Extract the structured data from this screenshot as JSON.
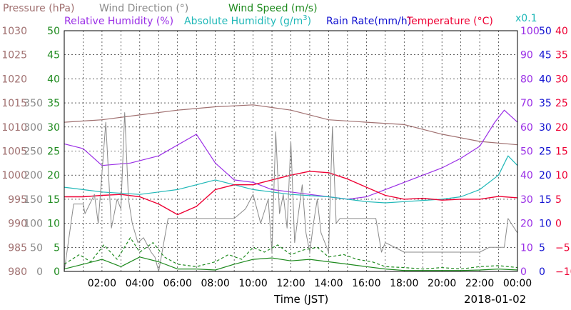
{
  "colors": {
    "pressure": "#a07070",
    "wind_dir": "#8a8a8a",
    "wind_speed": "#1e8a1e",
    "humidity_rel": "#9a2ee6",
    "humidity_abs": "#20b8b8",
    "rain": "#1010d0",
    "temperature": "#ee0033"
  },
  "legend": {
    "pressure": "Pressure (hPa)",
    "wind_dir": "Wind Direction (°)",
    "wind_speed": "Wind Speed (m/s)",
    "humidity_rel": "Relative Humidity (%)",
    "humidity_abs": "Absolute Humidity (g/m",
    "humidity_abs_sup": "3",
    "humidity_abs_close": ")",
    "rain": "Rain Rate(mm/h)",
    "temperature": "Temperature (°C)",
    "abs_scale": "x0.1"
  },
  "xlabel": "Time (JST)",
  "date": "2018-01-02",
  "chart_data": {
    "type": "line",
    "x_ticks": [
      "02:00",
      "04:00",
      "06:00",
      "08:00",
      "10:00",
      "12:00",
      "14:00",
      "16:00",
      "18:00",
      "20:00",
      "22:00",
      "00:00"
    ],
    "xlim_hours": [
      0,
      24
    ],
    "axes": {
      "pressure": {
        "ticks": [
          "1030",
          "1025",
          "1020",
          "1015",
          "1010",
          "1005",
          "1000",
          "995",
          "990",
          "985",
          "980"
        ],
        "range": [
          980,
          1030
        ]
      },
      "wind_dir": {
        "ticks": [
          "350",
          "300",
          "250",
          "200",
          "150",
          "100",
          "50",
          "0"
        ],
        "range": [
          0,
          350
        ]
      },
      "wind_speed": {
        "ticks": [
          "50",
          "45",
          "40",
          "35",
          "30",
          "25",
          "20",
          "15",
          "10",
          "5",
          "0"
        ],
        "range": [
          0,
          50
        ]
      },
      "humidity_rel": {
        "ticks": [
          "100",
          "90",
          "80",
          "70",
          "60",
          "50",
          "40",
          "30",
          "20",
          "10",
          "0"
        ],
        "range": [
          0,
          100
        ]
      },
      "rain": {
        "ticks": [
          "50",
          "45",
          "40",
          "35",
          "30",
          "25",
          "20",
          "15",
          "10",
          "5",
          "0"
        ],
        "range": [
          0,
          50
        ]
      },
      "temperature": {
        "ticks": [
          "40",
          "35",
          "30",
          "25",
          "20",
          "15",
          "10",
          "5",
          "0",
          "−5",
          "−10"
        ],
        "range": [
          -10,
          40
        ]
      }
    },
    "series": [
      {
        "key": "pressure",
        "axis": "pressure",
        "x": [
          0,
          2,
          4,
          6,
          8,
          10,
          12,
          14,
          16,
          18,
          20,
          22,
          24
        ],
        "y": [
          1011.0,
          1011.5,
          1012.5,
          1013.5,
          1014.2,
          1014.6,
          1013.5,
          1011.5,
          1011.0,
          1010.5,
          1008.5,
          1007.0,
          1006.3
        ]
      },
      {
        "key": "humidity_rel",
        "axis": "humidity_rel",
        "x": [
          0,
          1,
          2,
          3.5,
          5,
          7,
          8,
          9,
          10,
          11,
          12,
          13,
          14,
          15,
          16,
          17,
          18,
          19,
          20,
          21,
          22,
          22.8,
          23.3,
          24
        ],
        "y": [
          53,
          51,
          44,
          45,
          48,
          57,
          45,
          38,
          37,
          34,
          33,
          32,
          31,
          30,
          31,
          34,
          37,
          40,
          43,
          47,
          52,
          62,
          67,
          62
        ]
      },
      {
        "key": "humidity_abs",
        "axis": "humidity_rel",
        "x": [
          0,
          2,
          4,
          5,
          6,
          8,
          10,
          12,
          14,
          16,
          17,
          18,
          20,
          21,
          22,
          23,
          23.5,
          24
        ],
        "y": [
          35,
          33,
          32,
          33,
          34,
          38,
          34,
          32,
          31,
          29,
          28.5,
          29,
          30,
          31,
          34,
          40,
          48,
          44
        ]
      },
      {
        "key": "temperature",
        "axis": "temperature",
        "x": [
          0,
          1,
          2,
          3,
          4,
          5,
          6,
          7,
          8,
          9,
          10,
          11,
          12,
          13,
          14,
          15,
          16,
          17,
          18,
          19,
          20,
          21,
          22,
          23,
          24
        ],
        "y": [
          5.5,
          5.5,
          5.8,
          6.0,
          5.5,
          4.0,
          1.8,
          3.5,
          7.0,
          8.0,
          8.0,
          9.0,
          10.0,
          10.8,
          10.5,
          9.2,
          7.5,
          5.8,
          5.0,
          5.2,
          4.8,
          5.0,
          5.0,
          5.6,
          5.3
        ]
      },
      {
        "key": "wind_dir",
        "axis": "wind_dir",
        "x": [
          0,
          0.5,
          1,
          1.1,
          1.6,
          1.8,
          2.2,
          2.5,
          2.8,
          3.0,
          3.2,
          3.4,
          3.6,
          3.9,
          4.2,
          4.6,
          4.8,
          5.0,
          5.5,
          6,
          7,
          8,
          8.5,
          9,
          9.6,
          10,
          10.4,
          10.8,
          11,
          11.2,
          11.4,
          11.6,
          11.8,
          12,
          12.2,
          12.4,
          12.6,
          12.8,
          13.0,
          13.2,
          13.4,
          13.6,
          13.8,
          14.0,
          14.2,
          14.4,
          14.6,
          15,
          16,
          16.5,
          16.8,
          17,
          18,
          19,
          20,
          21,
          22,
          22.5,
          23,
          23.3,
          23.5,
          24
        ],
        "y": [
          0,
          140,
          140,
          120,
          160,
          100,
          310,
          90,
          150,
          130,
          330,
          150,
          100,
          60,
          70,
          40,
          30,
          0,
          110,
          110,
          110,
          110,
          110,
          110,
          130,
          160,
          100,
          150,
          40,
          290,
          120,
          160,
          90,
          270,
          60,
          120,
          180,
          80,
          40,
          100,
          150,
          80,
          60,
          40,
          300,
          100,
          110,
          110,
          110,
          110,
          40,
          60,
          40,
          40,
          40,
          40,
          40,
          50,
          50,
          50,
          110,
          80
        ]
      },
      {
        "key": "wind_speed_avg",
        "axis": "wind_speed",
        "x": [
          0,
          1,
          2,
          3,
          4,
          5,
          6,
          7,
          8,
          9,
          10,
          11,
          12,
          13,
          14,
          15,
          16,
          17,
          18,
          19,
          20,
          21,
          22,
          23,
          24
        ],
        "y": [
          0.5,
          1.5,
          2.5,
          1.0,
          3.0,
          2.0,
          0.5,
          0.5,
          0.3,
          1.5,
          2.5,
          2.8,
          2.2,
          2.5,
          2.0,
          1.5,
          1.0,
          0.5,
          0.2,
          0.2,
          0.2,
          0.2,
          0.3,
          0.5,
          0.3
        ]
      },
      {
        "key": "wind_speed_gust",
        "axis": "wind_speed",
        "x": [
          0,
          0.8,
          1.4,
          2.1,
          2.8,
          3.5,
          4.0,
          4.7,
          5.3,
          6,
          7,
          8,
          8.7,
          9.4,
          10,
          10.6,
          11.3,
          12,
          12.7,
          13.4,
          14,
          14.8,
          15.5,
          16.3,
          17,
          18,
          19,
          20,
          21,
          22,
          23,
          24
        ],
        "y": [
          1.5,
          3.5,
          2.0,
          5.5,
          2.5,
          7.0,
          4.0,
          6.0,
          3.0,
          1.5,
          1.0,
          2.0,
          3.5,
          2.5,
          5.0,
          4.0,
          5.5,
          3.5,
          4.5,
          5.0,
          3.0,
          3.5,
          2.5,
          2.0,
          1.0,
          0.8,
          0.5,
          0.8,
          0.5,
          1.0,
          1.2,
          0.8
        ]
      }
    ]
  }
}
